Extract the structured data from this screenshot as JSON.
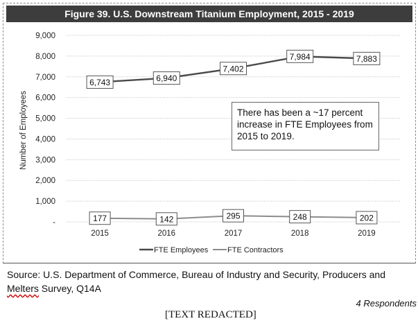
{
  "figure": {
    "title": "Figure 39. U.S. Downstream Titanium Employment, 2015 - 2019",
    "annotation": "There has been a ~17 percent increase in FTE Employees from 2015 to 2019.",
    "source_prefix": "Source: U.S. Department of Commerce, Bureau of Industry and Security, Producers and",
    "source_wavy": "Melters",
    "source_suffix": " Survey, Q14A",
    "respondents": "4 Respondents",
    "redacted": "[TEXT REDACTED]"
  },
  "colors": {
    "title_bg": "#3d3d3d",
    "employees_line": "#4a4a4a",
    "contractors_line": "#8c8c8c",
    "grid": "#bfbfbf"
  },
  "chart_data": {
    "type": "line",
    "x": [
      "2015",
      "2016",
      "2017",
      "2018",
      "2019"
    ],
    "ylabel": "Number of Employees",
    "ylim": [
      0,
      9000
    ],
    "yticks": [
      0,
      1000,
      2000,
      3000,
      4000,
      5000,
      6000,
      7000,
      8000,
      9000
    ],
    "ytick_labels": [
      "-",
      "1,000",
      "2,000",
      "3,000",
      "4,000",
      "5,000",
      "6,000",
      "7,000",
      "8,000",
      "9,000"
    ],
    "grid": true,
    "legend_position": "bottom",
    "series": [
      {
        "name": "FTE Employees",
        "values": [
          6743,
          6940,
          7402,
          7984,
          7883
        ],
        "labels": [
          "6,743",
          "6,940",
          "7,402",
          "7,984",
          "7,883"
        ]
      },
      {
        "name": "FTE Contractors",
        "values": [
          177,
          142,
          295,
          248,
          202
        ],
        "labels": [
          "177",
          "142",
          "295",
          "248",
          "202"
        ]
      }
    ]
  }
}
